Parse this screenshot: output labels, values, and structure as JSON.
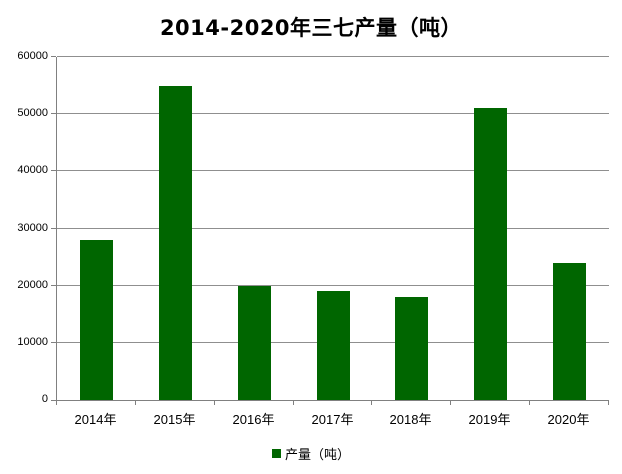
{
  "chart_data": {
    "type": "bar",
    "title": "2014-2020年三七产量（吨）",
    "categories": [
      "2014年",
      "2015年",
      "2016年",
      "2017年",
      "2018年",
      "2019年",
      "2020年"
    ],
    "values": [
      28000,
      55000,
      20000,
      19000,
      18000,
      51000,
      24000
    ],
    "series_name": "产量（吨）",
    "xlabel": "",
    "ylabel": "",
    "ylim": [
      0,
      60000
    ],
    "yticks": [
      0,
      10000,
      20000,
      30000,
      40000,
      50000,
      60000
    ],
    "grid": "horizontal",
    "legend_position": "bottom"
  },
  "legend": {
    "label": "产量（吨）"
  },
  "colors": {
    "bar": "#006600",
    "gridline": "#8f8f8f",
    "axis": "#808080",
    "text": "#000000",
    "background": "#ffffff"
  }
}
